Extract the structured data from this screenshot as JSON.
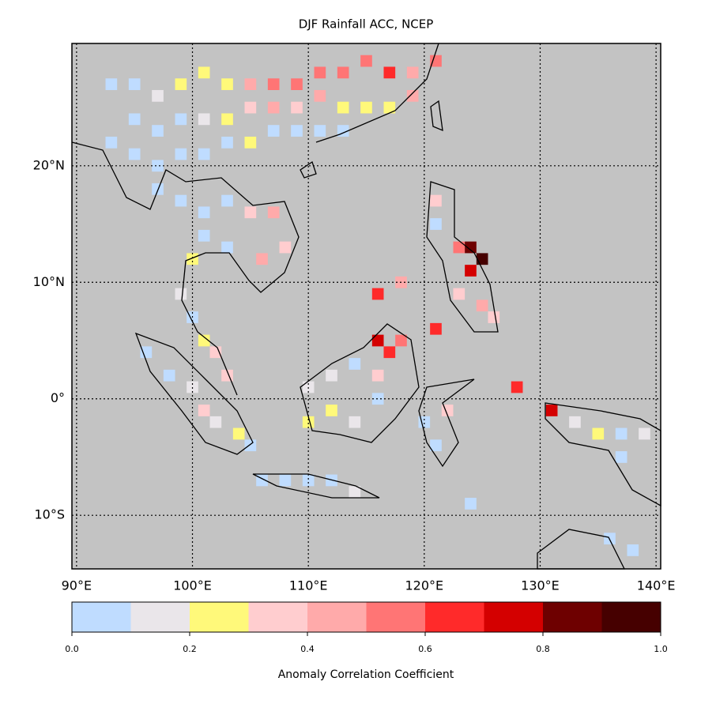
{
  "chart_data": {
    "type": "gridmap",
    "title": "DJF Rainfall ACC, NCEP",
    "xlim": [
      89.6,
      140.4
    ],
    "ylim": [
      -14.6,
      30.5
    ],
    "xticks": [
      {
        "value": 90,
        "label": "90°E"
      },
      {
        "value": 100,
        "label": "100°E"
      },
      {
        "value": 110,
        "label": "110°E"
      },
      {
        "value": 120,
        "label": "120°E"
      },
      {
        "value": 130,
        "label": "130°E"
      },
      {
        "value": 140,
        "label": "140°E"
      }
    ],
    "yticks": [
      {
        "value": 20,
        "label": "20°N"
      },
      {
        "value": 10,
        "label": "10°N"
      },
      {
        "value": 0,
        "label": "0°"
      },
      {
        "value": -10,
        "label": "10°S"
      }
    ],
    "grid": true,
    "background": "#c3c3c3",
    "cells": {
      "lon": [
        93,
        95,
        97,
        99,
        101,
        103,
        105,
        107,
        109,
        111,
        113,
        115,
        117,
        119,
        121,
        95,
        97,
        99,
        101,
        103,
        105,
        107,
        109,
        111,
        113,
        115,
        117,
        119,
        93,
        95,
        97,
        99,
        101,
        103,
        105,
        107,
        109,
        111,
        113,
        97,
        99,
        101,
        103,
        105,
        107,
        108,
        106,
        103,
        101,
        100,
        99,
        101,
        102,
        103,
        100,
        96,
        98,
        100,
        101,
        102,
        104,
        105,
        106,
        108,
        110,
        112,
        114,
        110,
        112,
        114,
        116,
        116,
        117,
        116,
        118,
        114,
        112,
        110,
        116,
        118,
        121,
        121,
        123,
        124,
        125,
        124,
        123,
        125,
        126,
        121,
        120,
        121,
        122,
        128,
        131,
        133,
        135,
        137,
        139,
        137,
        136,
        138,
        124
      ],
      "lat": [
        27,
        27,
        26,
        27,
        28,
        27,
        27,
        27,
        27,
        28,
        28,
        29,
        28,
        28,
        29,
        24,
        23,
        24,
        24,
        24,
        25,
        25,
        25,
        26,
        25,
        25,
        25,
        26,
        22,
        21,
        20,
        21,
        21,
        22,
        22,
        23,
        23,
        23,
        23,
        18,
        17,
        16,
        17,
        16,
        16,
        13,
        12,
        13,
        14,
        12,
        9,
        5,
        4,
        2,
        7,
        4,
        2,
        1,
        -1,
        -2,
        -3,
        -4,
        -7,
        -7,
        -7,
        -7,
        -8,
        1,
        -1,
        -2,
        0,
        2,
        4,
        5,
        5,
        3,
        2,
        -2,
        9,
        10,
        17,
        15,
        13,
        13,
        12,
        11,
        9,
        8,
        7,
        6,
        -2,
        -4,
        -1,
        1,
        -1,
        -2,
        -3,
        -3,
        -3,
        -5,
        -12,
        -13,
        -9
      ],
      "values": [
        0.05,
        0.05,
        0.15,
        0.25,
        0.25,
        0.25,
        0.45,
        0.55,
        0.55,
        0.55,
        0.55,
        0.55,
        0.65,
        0.45,
        0.55,
        0.05,
        0.05,
        0.05,
        0.15,
        0.25,
        0.35,
        0.45,
        0.35,
        0.45,
        0.25,
        0.25,
        0.25,
        0.45,
        0.05,
        0.05,
        0.05,
        0.05,
        0.05,
        0.05,
        0.25,
        0.05,
        0.05,
        0.05,
        0.05,
        0.05,
        0.05,
        0.05,
        0.05,
        0.35,
        0.45,
        0.35,
        0.45,
        0.05,
        0.05,
        0.25,
        0.15,
        0.25,
        0.35,
        0.35,
        0.05,
        0.05,
        0.05,
        0.15,
        0.35,
        0.15,
        0.25,
        0.05,
        0.05,
        0.05,
        0.05,
        0.05,
        0.15,
        0.15,
        0.25,
        0.15,
        0.05,
        0.35,
        0.65,
        0.75,
        0.55,
        0.05,
        0.15,
        0.25,
        0.65,
        0.45,
        0.35,
        0.05,
        0.55,
        0.85,
        0.95,
        0.75,
        0.35,
        0.45,
        0.35,
        0.65,
        0.05,
        0.05,
        0.35,
        0.65,
        0.75,
        0.15,
        0.25,
        0.05,
        0.15,
        0.05,
        0.05,
        0.05,
        0.05
      ]
    },
    "colorbar": {
      "bounds": [
        0,
        0.1,
        0.2,
        0.3,
        0.4,
        0.5,
        0.6,
        0.7,
        0.8,
        0.9,
        1
      ],
      "colors": [
        "#bfdcff",
        "#eae6ea",
        "#fff97a",
        "#ffcdcf",
        "#ffaaaa",
        "#ff7575",
        "#ff2a2a",
        "#d40000",
        "#6e0000",
        "#460000"
      ],
      "ticks": [
        {
          "value": 0,
          "label": "0.0"
        },
        0.2,
        0.4,
        0.6,
        0.8,
        {
          "value": 1,
          "label": "1.0"
        }
      ],
      "label": "Anomaly Correlation Coefficient"
    }
  }
}
